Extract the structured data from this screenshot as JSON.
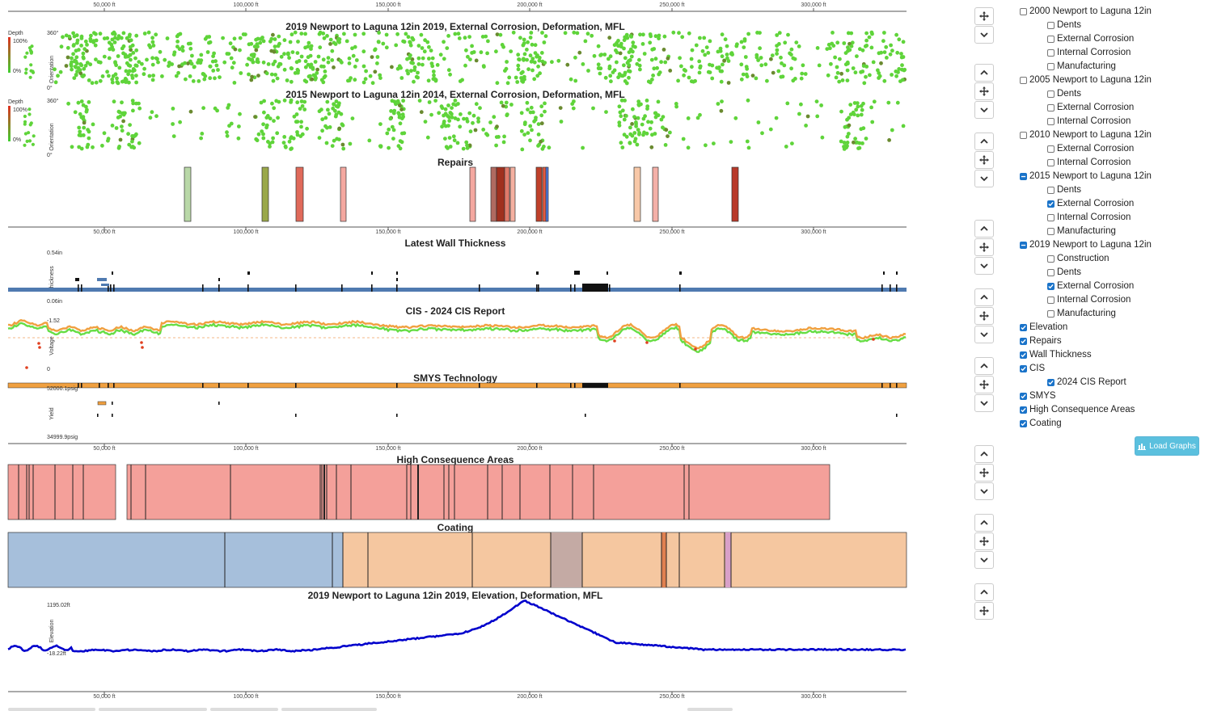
{
  "axis": {
    "ticks": [
      "50,000 ft",
      "100,000 ft",
      "150,000 ft",
      "200,000 ft",
      "250,000 ft",
      "300,000 ft"
    ]
  },
  "panels": {
    "inspection_2019": {
      "title": "2019 Newport to Laguna 12in 2019, External Corrosion, Deformation, MFL",
      "depth_label": "Depth",
      "depth_high": "100%",
      "depth_low": "0%",
      "orientation_label": "Orientation",
      "orient_top": "360°",
      "orient_bottom": "0°"
    },
    "inspection_2015": {
      "title": "2015 Newport to Laguna 12in 2014, External Corrosion, Deformation, MFL",
      "depth_label": "Depth",
      "depth_high": "100%",
      "depth_low": "0%",
      "orientation_label": "Orientation",
      "orient_top": "360°",
      "orient_bottom": "0°"
    },
    "repairs": {
      "title": "Repairs"
    },
    "wall_thickness": {
      "title": "Latest Wall Thickness",
      "y_label": "Thickness",
      "max": "0.54in",
      "min": "0.06in"
    },
    "cis": {
      "title": "CIS - 2024 CIS Report",
      "y_label": "Voltage",
      "top": "-1.52",
      "bottom": "0"
    },
    "smys": {
      "title": "SMYS Technology",
      "y_label": "Yield",
      "top": "52000.1psig",
      "bottom": "34999.9psig"
    },
    "hca": {
      "title": "High Consequence Areas"
    },
    "coating": {
      "title": "Coating"
    },
    "elevation": {
      "title": "2019 Newport to Laguna 12in 2019, Elevation, Deformation, MFL",
      "y_label": "Elevation",
      "top": "1195.02ft",
      "bottom": "-18.22ft"
    }
  },
  "tree": [
    {
      "label": "2000 Newport to Laguna 12in",
      "level": 0,
      "state": "unchecked"
    },
    {
      "label": "Dents",
      "level": 1,
      "state": "unchecked"
    },
    {
      "label": "External Corrosion",
      "level": 1,
      "state": "unchecked"
    },
    {
      "label": "Internal Corrosion",
      "level": 1,
      "state": "unchecked"
    },
    {
      "label": "Manufacturing",
      "level": 1,
      "state": "unchecked"
    },
    {
      "label": "2005 Newport to Laguna 12in",
      "level": 0,
      "state": "unchecked"
    },
    {
      "label": "Dents",
      "level": 1,
      "state": "unchecked"
    },
    {
      "label": "External Corrosion",
      "level": 1,
      "state": "unchecked"
    },
    {
      "label": "Internal Corrosion",
      "level": 1,
      "state": "unchecked"
    },
    {
      "label": "2010 Newport to Laguna 12in",
      "level": 0,
      "state": "unchecked"
    },
    {
      "label": "External Corrosion",
      "level": 1,
      "state": "unchecked"
    },
    {
      "label": "Internal Corrosion",
      "level": 1,
      "state": "unchecked"
    },
    {
      "label": "2015 Newport to Laguna 12in",
      "level": 0,
      "state": "partial"
    },
    {
      "label": "Dents",
      "level": 1,
      "state": "unchecked"
    },
    {
      "label": "External Corrosion",
      "level": 1,
      "state": "checked"
    },
    {
      "label": "Internal Corrosion",
      "level": 1,
      "state": "unchecked"
    },
    {
      "label": "Manufacturing",
      "level": 1,
      "state": "unchecked"
    },
    {
      "label": "2019 Newport to Laguna 12in",
      "level": 0,
      "state": "partial"
    },
    {
      "label": "Construction",
      "level": 1,
      "state": "unchecked"
    },
    {
      "label": "Dents",
      "level": 1,
      "state": "unchecked"
    },
    {
      "label": "External Corrosion",
      "level": 1,
      "state": "checked"
    },
    {
      "label": "Internal Corrosion",
      "level": 1,
      "state": "unchecked"
    },
    {
      "label": "Manufacturing",
      "level": 1,
      "state": "unchecked"
    },
    {
      "label": "Elevation",
      "level": 0,
      "state": "checked"
    },
    {
      "label": "Repairs",
      "level": 0,
      "state": "checked"
    },
    {
      "label": "Wall Thickness",
      "level": 0,
      "state": "checked"
    },
    {
      "label": "CIS",
      "level": 0,
      "state": "checked"
    },
    {
      "label": "2024 CIS Report",
      "level": 1,
      "state": "checked"
    },
    {
      "label": "SMYS",
      "level": 0,
      "state": "checked"
    },
    {
      "label": "High Consequence Areas",
      "level": 0,
      "state": "checked"
    },
    {
      "label": "Coating",
      "level": 0,
      "state": "checked"
    }
  ],
  "load_button": {
    "label": "Load Graphs"
  },
  "colors": {
    "accent": "#5bc0de",
    "checkbox": "#1a73c9",
    "anomaly": "#66cc33",
    "hca": "#f4a09a",
    "coating_blue": "#a6bfdb",
    "coating_orange": "#f5c7a0",
    "elevation": "#0000cc",
    "cis_on": "#f0a040",
    "cis_off": "#66dd44"
  }
}
